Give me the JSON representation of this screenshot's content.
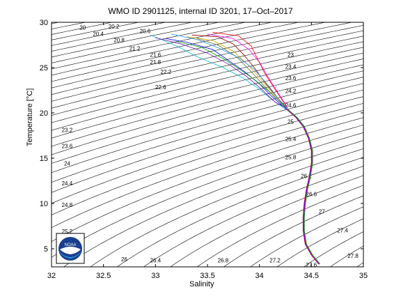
{
  "chart_data": {
    "type": "line",
    "title": "WMO ID 2901125, internal ID 3201, 17–Oct–2017",
    "xlabel": "Salinity",
    "ylabel": "Temperature [°C]",
    "xlim": [
      32,
      35
    ],
    "ylim": [
      3,
      30
    ],
    "xticks": [
      "32",
      "32.5",
      "33",
      "33.5",
      "34",
      "34.5",
      "35"
    ],
    "yticks": [
      "5",
      "10",
      "15",
      "20",
      "25",
      "30"
    ],
    "grid": false,
    "legend": "none",
    "isopycnal_labels": [
      {
        "text": "20",
        "S": 32.3,
        "T": 29.2
      },
      {
        "text": "20.2",
        "S": 32.6,
        "T": 29.3
      },
      {
        "text": "20.4",
        "S": 32.45,
        "T": 28.5
      },
      {
        "text": "20.6",
        "S": 32.9,
        "T": 28.8
      },
      {
        "text": "20.8",
        "S": 32.65,
        "T": 27.8
      },
      {
        "text": "21.2",
        "S": 32.8,
        "T": 26.9
      },
      {
        "text": "21.6",
        "S": 33.0,
        "T": 26.2
      },
      {
        "text": "21.8",
        "S": 33.0,
        "T": 25.4
      },
      {
        "text": "22.2",
        "S": 33.1,
        "T": 24.3
      },
      {
        "text": "22.6",
        "S": 33.05,
        "T": 22.6
      },
      {
        "text": "23",
        "S": 34.3,
        "T": 26.2
      },
      {
        "text": "23.4",
        "S": 34.3,
        "T": 24.9
      },
      {
        "text": "23.6",
        "S": 34.3,
        "T": 23.6
      },
      {
        "text": "24.2",
        "S": 34.3,
        "T": 22.2
      },
      {
        "text": "24.6",
        "S": 34.3,
        "T": 20.6
      },
      {
        "text": "25",
        "S": 34.3,
        "T": 18.8
      },
      {
        "text": "25.4",
        "S": 34.3,
        "T": 16.9
      },
      {
        "text": "25.8",
        "S": 34.3,
        "T": 14.9
      },
      {
        "text": "26.2",
        "S": 34.45,
        "T": 12.8
      },
      {
        "text": "26.6",
        "S": 34.5,
        "T": 10.8
      },
      {
        "text": "27",
        "S": 34.6,
        "T": 8.9
      },
      {
        "text": "27.4",
        "S": 34.8,
        "T": 6.8
      },
      {
        "text": "27.8",
        "S": 34.9,
        "T": 4.0
      },
      {
        "text": "23.2",
        "S": 32.15,
        "T": 17.9
      },
      {
        "text": "23.6",
        "S": 32.15,
        "T": 16.1
      },
      {
        "text": "24",
        "S": 32.15,
        "T": 14.2
      },
      {
        "text": "24.4",
        "S": 32.15,
        "T": 12.0
      },
      {
        "text": "24.8",
        "S": 32.15,
        "T": 9.6
      },
      {
        "text": "25.2",
        "S": 32.15,
        "T": 6.7
      },
      {
        "text": "26",
        "S": 32.7,
        "T": 3.6
      },
      {
        "text": "26.4",
        "S": 33.0,
        "T": 3.5
      },
      {
        "text": "26.8",
        "S": 33.65,
        "T": 3.5
      },
      {
        "text": "27.2",
        "S": 34.15,
        "T": 3.5
      },
      {
        "text": "27.6",
        "S": 34.5,
        "T": 3.0
      }
    ],
    "series": [
      {
        "color": "#8b0000",
        "values": [
          [
            33.35,
            28.6
          ],
          [
            33.6,
            28.4
          ],
          [
            33.75,
            27.6
          ],
          [
            33.85,
            26.4
          ],
          [
            33.95,
            25.0
          ],
          [
            34.05,
            23.4
          ],
          [
            34.15,
            22.0
          ],
          [
            34.25,
            20.6
          ]
        ]
      },
      {
        "color": "#0000ff",
        "values": [
          [
            33.1,
            28.2
          ],
          [
            33.3,
            27.8
          ],
          [
            33.55,
            27.0
          ],
          [
            33.7,
            25.8
          ],
          [
            33.85,
            24.6
          ],
          [
            34.0,
            23.2
          ],
          [
            34.12,
            21.8
          ],
          [
            34.25,
            20.5
          ]
        ]
      },
      {
        "color": "#00a000",
        "values": [
          [
            33.2,
            27.9
          ],
          [
            33.45,
            27.2
          ],
          [
            33.65,
            26.0
          ],
          [
            33.8,
            24.9
          ],
          [
            33.95,
            23.7
          ],
          [
            34.1,
            22.3
          ],
          [
            34.25,
            20.6
          ]
        ]
      },
      {
        "color": "#ff00ff",
        "values": [
          [
            33.5,
            28.7
          ],
          [
            33.75,
            28.2
          ],
          [
            33.9,
            27.0
          ],
          [
            34.0,
            25.6
          ],
          [
            34.08,
            24.0
          ],
          [
            34.18,
            22.2
          ],
          [
            34.27,
            20.6
          ]
        ]
      },
      {
        "color": "#00bcd4",
        "values": [
          [
            32.95,
            28.6
          ],
          [
            33.2,
            27.4
          ],
          [
            33.4,
            26.2
          ],
          [
            33.65,
            25.0
          ],
          [
            33.85,
            23.8
          ],
          [
            34.0,
            22.6
          ],
          [
            34.15,
            21.2
          ],
          [
            34.25,
            20.4
          ]
        ]
      },
      {
        "color": "#d2a000",
        "values": [
          [
            33.3,
            28.4
          ],
          [
            33.55,
            28.0
          ],
          [
            33.75,
            26.8
          ],
          [
            33.9,
            25.2
          ],
          [
            34.02,
            23.6
          ],
          [
            34.15,
            21.9
          ],
          [
            34.26,
            20.6
          ]
        ]
      },
      {
        "color": "#ff0000",
        "values": [
          [
            33.55,
            28.9
          ],
          [
            33.8,
            28.5
          ],
          [
            33.92,
            27.4
          ],
          [
            33.98,
            26.0
          ],
          [
            34.05,
            24.4
          ],
          [
            34.15,
            22.6
          ],
          [
            34.26,
            20.7
          ]
        ]
      },
      {
        "color": "#6a0dad",
        "values": [
          [
            33.0,
            28.3
          ],
          [
            33.25,
            27.6
          ],
          [
            33.5,
            26.6
          ],
          [
            33.7,
            25.4
          ],
          [
            33.88,
            24.0
          ],
          [
            34.02,
            22.6
          ],
          [
            34.15,
            21.2
          ],
          [
            34.26,
            20.5
          ]
        ]
      },
      {
        "color": "#556b2f",
        "values": [
          [
            33.4,
            28.2
          ],
          [
            33.6,
            27.5
          ],
          [
            33.78,
            26.2
          ],
          [
            33.9,
            24.8
          ],
          [
            34.02,
            23.3
          ],
          [
            34.14,
            21.8
          ],
          [
            34.26,
            20.6
          ]
        ]
      },
      {
        "color": "#1e90ff",
        "values": [
          [
            33.15,
            28.7
          ],
          [
            33.4,
            28.1
          ],
          [
            33.6,
            27.2
          ],
          [
            33.8,
            26.1
          ],
          [
            33.95,
            24.8
          ],
          [
            34.08,
            23.1
          ],
          [
            34.18,
            21.6
          ],
          [
            34.27,
            20.5
          ]
        ]
      }
    ],
    "deep_profile": {
      "colors": [
        "#ff0000",
        "#0000ff",
        "#ff00ff",
        "#00a000"
      ],
      "values": [
        [
          34.25,
          20.5
        ],
        [
          34.35,
          19.5
        ],
        [
          34.42,
          18.5
        ],
        [
          34.47,
          17.2
        ],
        [
          34.5,
          15.8
        ],
        [
          34.5,
          14.5
        ],
        [
          34.48,
          13.0
        ],
        [
          34.45,
          11.5
        ],
        [
          34.43,
          10.0
        ],
        [
          34.42,
          8.5
        ],
        [
          34.42,
          7.0
        ],
        [
          34.44,
          5.5
        ],
        [
          34.5,
          4.3
        ],
        [
          34.57,
          3.3
        ]
      ]
    }
  },
  "logo": {
    "text": "NOAA"
  }
}
